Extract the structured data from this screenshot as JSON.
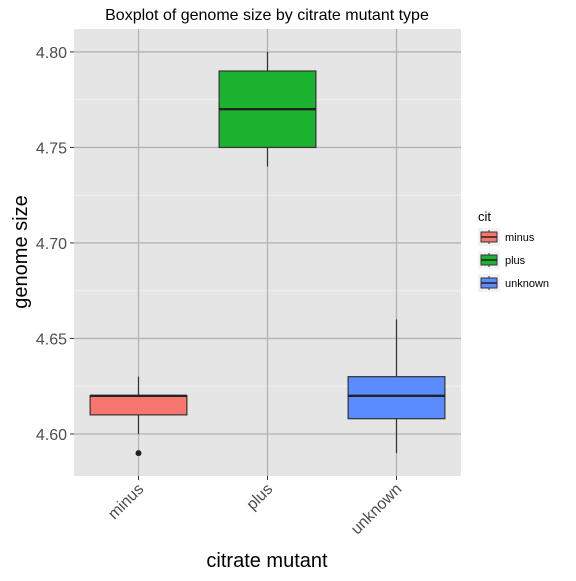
{
  "chart_data": {
    "type": "boxplot",
    "title": "Boxplot of genome size by citrate mutant type",
    "xlabel": "citrate mutant",
    "ylabel": "genome size",
    "ylim": [
      4.578,
      4.812
    ],
    "yticks": [
      4.6,
      4.65,
      4.7,
      4.75,
      4.8
    ],
    "ytick_labels": [
      "4.60",
      "4.65",
      "4.70",
      "4.75",
      "4.80"
    ],
    "categories": [
      "minus",
      "plus",
      "unknown"
    ],
    "grid": true,
    "legend": {
      "title": "cit",
      "position": "right",
      "entries": [
        {
          "label": "minus",
          "color": "#F8766D"
        },
        {
          "label": "plus",
          "color": "#1CB330"
        },
        {
          "label": "unknown",
          "color": "#5B8CFF"
        }
      ]
    },
    "boxes": [
      {
        "category": "minus",
        "whisker_low": 4.6,
        "q1": 4.61,
        "median": 4.62,
        "q3": 4.62,
        "whisker_high": 4.63,
        "outliers": [
          4.59
        ],
        "color": "#F8766D"
      },
      {
        "category": "plus",
        "whisker_low": 4.74,
        "q1": 4.75,
        "median": 4.77,
        "q3": 4.79,
        "whisker_high": 4.8,
        "outliers": [],
        "color": "#1CB330"
      },
      {
        "category": "unknown",
        "whisker_low": 4.59,
        "q1": 4.608,
        "median": 4.62,
        "q3": 4.63,
        "whisker_high": 4.66,
        "outliers": [],
        "color": "#5B8CFF"
      }
    ]
  }
}
